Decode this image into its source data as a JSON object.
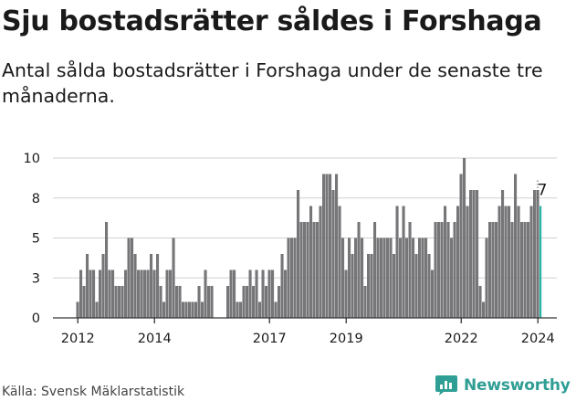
{
  "title": "Sju bostadsrätter såldes i Forshaga",
  "subtitle": "Antal sålda bostadsrätter i Forshaga under de senaste tre månaderna.",
  "source": "Källa: Svensk Mäklarstatistik",
  "brand": {
    "name": "Newsworthy",
    "icon": "newsworthy-logo-icon"
  },
  "colors": {
    "bar": "#767578",
    "highlight": "#2bb5a6",
    "axis": "#333333",
    "grid": "#d0d0d0",
    "brand": "#2f9e94"
  },
  "chart_data": {
    "type": "bar",
    "title": "Sju bostadsrätter såldes i Forshaga",
    "xlabel": "",
    "ylabel": "",
    "ylim": [
      0,
      10
    ],
    "yticks": [
      {
        "value": 0,
        "label": "0"
      },
      {
        "value": 2.5,
        "label": "3"
      },
      {
        "value": 5,
        "label": "5"
      },
      {
        "value": 7.5,
        "label": "8"
      },
      {
        "value": 10,
        "label": "10"
      }
    ],
    "xticks": [
      {
        "year": 2012,
        "label": "2012"
      },
      {
        "year": 2014,
        "label": "2014"
      },
      {
        "year": 2017,
        "label": "2017"
      },
      {
        "year": 2019,
        "label": "2019"
      },
      {
        "year": 2022,
        "label": "2022"
      },
      {
        "year": 2024,
        "label": "2024"
      }
    ],
    "start": {
      "year": 2012,
      "month": 1
    },
    "period": "month",
    "values": [
      1,
      3,
      2,
      4,
      3,
      3,
      1,
      3,
      4,
      6,
      3,
      3,
      2,
      2,
      2,
      3,
      5,
      5,
      4,
      3,
      3,
      3,
      3,
      4,
      3,
      4,
      2,
      1,
      3,
      3,
      5,
      2,
      2,
      1,
      1,
      1,
      1,
      1,
      2,
      1,
      3,
      2,
      2,
      0,
      0,
      0,
      0,
      2,
      3,
      3,
      1,
      1,
      2,
      2,
      3,
      2,
      3,
      1,
      3,
      2,
      3,
      3,
      1,
      2,
      4,
      3,
      5,
      5,
      5,
      8,
      6,
      6,
      6,
      7,
      6,
      6,
      7,
      9,
      9,
      9,
      8,
      9,
      7,
      5,
      3,
      5,
      4,
      5,
      6,
      5,
      2,
      4,
      4,
      6,
      5,
      5,
      5,
      5,
      5,
      4,
      7,
      5,
      7,
      5,
      6,
      5,
      4,
      5,
      5,
      5,
      4,
      3,
      6,
      6,
      6,
      7,
      6,
      5,
      6,
      7,
      9,
      10,
      7,
      8,
      8,
      8,
      2,
      1,
      5,
      6,
      6,
      6,
      7,
      8,
      7,
      7,
      6,
      9,
      7,
      6,
      6,
      6,
      7,
      8,
      8,
      7
    ],
    "last_value_label": "7"
  }
}
